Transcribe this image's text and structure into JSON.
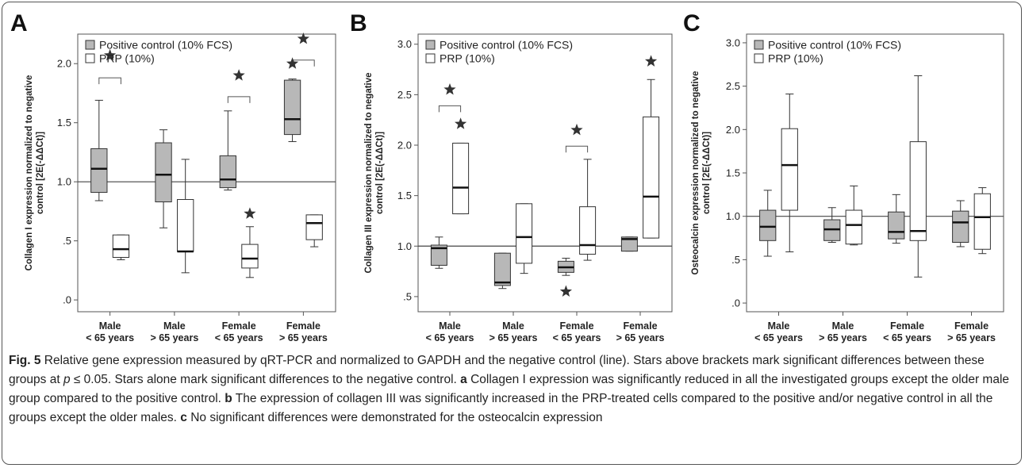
{
  "colors": {
    "positive_fill": "#b8b8b8",
    "prp_fill": "#ffffff",
    "stroke": "#333333"
  },
  "chart_data": [
    {
      "type": "boxplot",
      "panel_label": "A",
      "ylabel": "Collagen I expression normalized to negative control [2E(-ΔΔCt)]",
      "ylim": [
        -0.1,
        2.25
      ],
      "yticks": [
        0.0,
        0.5,
        1.0,
        1.5,
        2.0
      ],
      "ytick_labels": [
        ".0",
        ".5",
        "1.0",
        "1.5",
        "2.0"
      ],
      "reference_line": 1.0,
      "categories": [
        "Male\n< 65 years",
        "Male\n> 65 years",
        "Female\n< 65 years",
        "Female\n> 65 years"
      ],
      "legend": [
        "Positive control (10% FCS)",
        "PRP (10%)"
      ],
      "series": [
        {
          "name": "Positive control (10% FCS)",
          "boxes": [
            {
              "min": 0.84,
              "q1": 0.91,
              "median": 1.11,
              "q3": 1.28,
              "max": 1.69
            },
            {
              "min": 0.61,
              "q1": 0.83,
              "median": 1.06,
              "q3": 1.33,
              "max": 1.44
            },
            {
              "min": 0.93,
              "q1": 0.95,
              "median": 1.02,
              "q3": 1.22,
              "max": 1.6
            },
            {
              "min": 1.34,
              "q1": 1.4,
              "median": 1.53,
              "q3": 1.86,
              "max": 1.87
            }
          ]
        },
        {
          "name": "PRP (10%)",
          "boxes": [
            {
              "min": 0.34,
              "q1": 0.36,
              "median": 0.43,
              "q3": 0.55,
              "max": 0.55
            },
            {
              "min": 0.23,
              "q1": 0.41,
              "median": 0.41,
              "q3": 0.85,
              "max": 1.19
            },
            {
              "min": 0.19,
              "q1": 0.27,
              "median": 0.35,
              "q3": 0.47,
              "max": 0.62
            },
            {
              "min": 0.45,
              "q1": 0.51,
              "median": 0.65,
              "q3": 0.72,
              "max": 0.72
            }
          ]
        }
      ],
      "brackets": [
        {
          "category": 0,
          "y": 1.88
        },
        {
          "category": 2,
          "y": 1.72
        },
        {
          "category": 3,
          "y": 2.03
        }
      ],
      "stars": [
        {
          "category": 0,
          "series": "bracket",
          "y": 2.07
        },
        {
          "category": 2,
          "series": "bracket",
          "y": 1.9
        },
        {
          "category": 3,
          "series": "bracket",
          "y": 2.21
        },
        {
          "category": 3,
          "series": 0,
          "y": 2.0
        },
        {
          "category": 2,
          "series": 1,
          "y": 0.73
        }
      ]
    },
    {
      "type": "boxplot",
      "panel_label": "B",
      "ylabel": "Collagen III expression normalized to negative control [2E(-ΔΔCt)]",
      "ylim": [
        0.35,
        3.1
      ],
      "yticks": [
        0.5,
        1.0,
        1.5,
        2.0,
        2.5,
        3.0
      ],
      "ytick_labels": [
        ".5",
        "1.0",
        "1.5",
        "2.0",
        "2.5",
        "3.0"
      ],
      "reference_line": 1.0,
      "categories": [
        "Male\n< 65 years",
        "Male\n> 65 years",
        "Female\n< 65 years",
        "Female\n> 65 years"
      ],
      "legend": [
        "Positive control (10% FCS)",
        "PRP (10%)"
      ],
      "series": [
        {
          "name": "Positive control (10% FCS)",
          "boxes": [
            {
              "min": 0.78,
              "q1": 0.81,
              "median": 0.98,
              "q3": 1.01,
              "max": 1.09
            },
            {
              "min": 0.58,
              "q1": 0.61,
              "median": 0.64,
              "q3": 0.93,
              "max": 0.93
            },
            {
              "min": 0.71,
              "q1": 0.74,
              "median": 0.79,
              "q3": 0.85,
              "max": 0.88
            },
            {
              "min": 0.95,
              "q1": 0.95,
              "median": 1.07,
              "q3": 1.09,
              "max": 1.09
            }
          ]
        },
        {
          "name": "PRP (10%)",
          "boxes": [
            {
              "min": 1.32,
              "q1": 1.32,
              "median": 1.58,
              "q3": 2.02,
              "max": 2.02
            },
            {
              "min": 0.73,
              "q1": 0.83,
              "median": 1.09,
              "q3": 1.42,
              "max": 1.42
            },
            {
              "min": 0.86,
              "q1": 0.92,
              "median": 1.01,
              "q3": 1.39,
              "max": 1.86
            },
            {
              "min": 1.08,
              "q1": 1.08,
              "median": 1.49,
              "q3": 2.28,
              "max": 2.65
            }
          ]
        }
      ],
      "brackets": [
        {
          "category": 0,
          "y": 2.39
        },
        {
          "category": 2,
          "y": 1.99
        }
      ],
      "stars": [
        {
          "category": 0,
          "series": "bracket",
          "y": 2.55
        },
        {
          "category": 2,
          "series": "bracket",
          "y": 2.15
        },
        {
          "category": 0,
          "series": 1,
          "y": 2.21
        },
        {
          "category": 2,
          "series": 0,
          "y": 0.55
        },
        {
          "category": 3,
          "series": 1,
          "y": 2.83
        }
      ]
    },
    {
      "type": "boxplot",
      "panel_label": "C",
      "ylabel": "Osteocalcin expression normalized to negative control [2E(-ΔΔCt)]",
      "ylim": [
        -0.1,
        3.1
      ],
      "yticks": [
        0.0,
        0.5,
        1.0,
        1.5,
        2.0,
        2.5,
        3.0
      ],
      "ytick_labels": [
        ".0",
        ".5",
        "1.0",
        "1.5",
        "2.0",
        "2.5",
        "3.0"
      ],
      "reference_line": 1.0,
      "categories": [
        "Male\n< 65 years",
        "Male\n> 65 years",
        "Female\n< 65 years",
        "Female\n> 65 years"
      ],
      "legend": [
        "Positive control (10% FCS)",
        "PRP (10%)"
      ],
      "series": [
        {
          "name": "Positive control (10% FCS)",
          "boxes": [
            {
              "min": 0.54,
              "q1": 0.72,
              "median": 0.88,
              "q3": 1.07,
              "max": 1.3
            },
            {
              "min": 0.7,
              "q1": 0.72,
              "median": 0.85,
              "q3": 0.96,
              "max": 1.1
            },
            {
              "min": 0.69,
              "q1": 0.74,
              "median": 0.82,
              "q3": 1.05,
              "max": 1.25
            },
            {
              "min": 0.65,
              "q1": 0.7,
              "median": 0.93,
              "q3": 1.06,
              "max": 1.18
            }
          ]
        },
        {
          "name": "PRP (10%)",
          "boxes": [
            {
              "min": 0.59,
              "q1": 1.07,
              "median": 1.59,
              "q3": 2.01,
              "max": 2.41
            },
            {
              "min": 0.67,
              "q1": 0.68,
              "median": 0.9,
              "q3": 1.07,
              "max": 1.35
            },
            {
              "min": 0.3,
              "q1": 0.72,
              "median": 0.83,
              "q3": 1.86,
              "max": 2.62
            },
            {
              "min": 0.57,
              "q1": 0.62,
              "median": 0.99,
              "q3": 1.26,
              "max": 1.33
            }
          ]
        }
      ],
      "brackets": [],
      "stars": []
    }
  ],
  "caption": {
    "fig_label": "Fig. 5",
    "s1": " Relative gene expression measured by qRT-PCR and normalized to GAPDH and the negative control (line). Stars above brackets mark significant differences between these groups at ",
    "p": "p",
    "s2": " ≤ 0.05. Stars alone mark significant differences to the negative control. ",
    "a": "a",
    "s3": " Collagen I expression was significantly reduced in all the investigated groups except the older male group compared to the positive control. ",
    "b": "b",
    "s4": " The expression of collagen III was significantly increased in the PRP-treated cells compared to the positive and/or negative control in all the groups except the older males. ",
    "c": "c",
    "s5": " No significant differences were demonstrated for the osteocalcin expression"
  }
}
